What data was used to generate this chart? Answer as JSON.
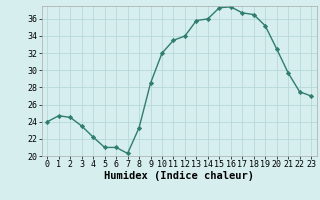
{
  "x": [
    0,
    1,
    2,
    3,
    4,
    5,
    6,
    7,
    8,
    9,
    10,
    11,
    12,
    13,
    14,
    15,
    16,
    17,
    18,
    19,
    20,
    21,
    22,
    23
  ],
  "y": [
    24,
    24.7,
    24.5,
    23.5,
    22.2,
    21.0,
    21.0,
    20.3,
    23.3,
    28.5,
    32.0,
    33.5,
    34.0,
    35.8,
    36.0,
    37.3,
    37.4,
    36.7,
    36.5,
    35.2,
    32.5,
    29.7,
    27.5,
    27.0
  ],
  "line_color": "#2e7d6e",
  "marker": "D",
  "markersize": 2.2,
  "linewidth": 1.0,
  "bg_color": "#d6eeee",
  "grid_color": "#b8d8d8",
  "xlabel": "Humidex (Indice chaleur)",
  "xlim": [
    -0.5,
    23.5
  ],
  "ylim": [
    20,
    37.5
  ],
  "yticks": [
    20,
    22,
    24,
    26,
    28,
    30,
    32,
    34,
    36
  ],
  "xticks": [
    0,
    1,
    2,
    3,
    4,
    5,
    6,
    7,
    8,
    9,
    10,
    11,
    12,
    13,
    14,
    15,
    16,
    17,
    18,
    19,
    20,
    21,
    22,
    23
  ],
  "xlabel_fontsize": 7.5,
  "tick_fontsize": 6.0
}
